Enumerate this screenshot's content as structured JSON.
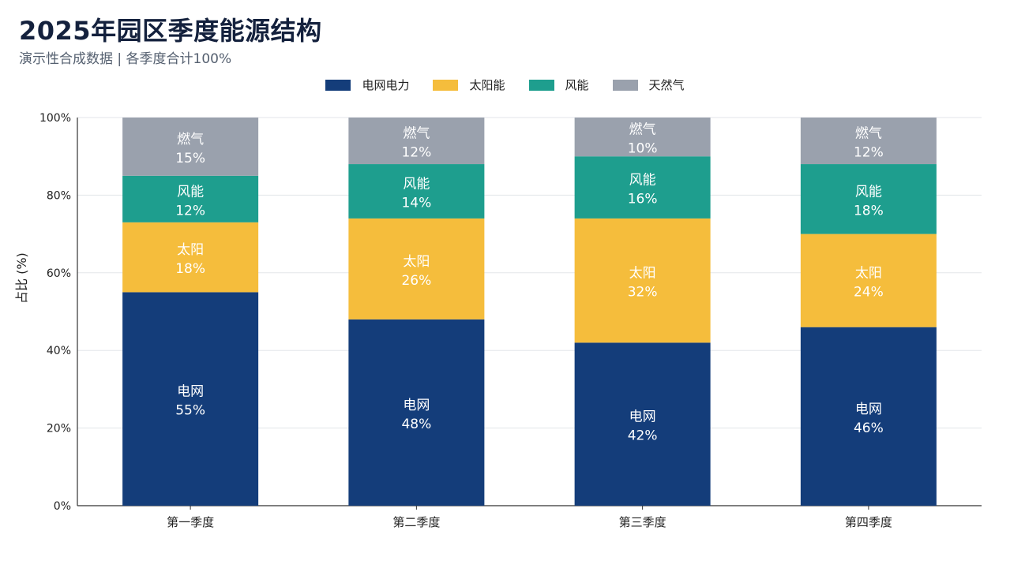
{
  "chart_data": {
    "type": "bar",
    "stacked": true,
    "title": "2025年园区季度能源结构",
    "subtitle": "演示性合成数据 | 各季度合计100%",
    "ylabel": "占比 (%)",
    "ylim": [
      0,
      100
    ],
    "yticks": [
      "0%",
      "20%",
      "40%",
      "60%",
      "80%",
      "100%"
    ],
    "grid": true,
    "legend_position": "top",
    "categories": [
      "第一季度",
      "第二季度",
      "第三季度",
      "第四季度"
    ],
    "series": [
      {
        "name": "电网电力",
        "short": "电网",
        "color": "#143d7a",
        "values": [
          55,
          48,
          42,
          46
        ]
      },
      {
        "name": "太阳能",
        "short": "太阳",
        "color": "#f5bd3c",
        "values": [
          18,
          26,
          32,
          24
        ]
      },
      {
        "name": "风能",
        "short": "风能",
        "color": "#1e9e8e",
        "values": [
          12,
          14,
          16,
          18
        ]
      },
      {
        "name": "天然气",
        "short": "燃气",
        "color": "#9aa1ad",
        "values": [
          15,
          12,
          10,
          12
        ]
      }
    ]
  }
}
